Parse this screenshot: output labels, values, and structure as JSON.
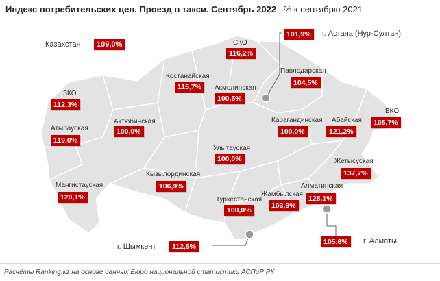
{
  "title": {
    "main": "Индекс потребительских цен. Проезд в такси. Сентябрь 2022",
    "separator": "|",
    "subtitle": "% к сентябрю 2021"
  },
  "national": {
    "label": "Казахстан",
    "value": "109,0%"
  },
  "regions": [
    {
      "name": "СКО",
      "value": "116,2%"
    },
    {
      "name": "Костанайская",
      "value": "115,7%"
    },
    {
      "name": "Акмолинская",
      "value": "100,5%"
    },
    {
      "name": "Павлодарская",
      "value": "104,5%"
    },
    {
      "name": "ЗКО",
      "value": "112,3%"
    },
    {
      "name": "Атырауская",
      "value": "119,0%"
    },
    {
      "name": "Актюбинская",
      "value": "100,0%"
    },
    {
      "name": "Карагандинская",
      "value": "100,0%"
    },
    {
      "name": "Абайская",
      "value": "121,2%"
    },
    {
      "name": "ВКО",
      "value": "105,7%"
    },
    {
      "name": "Улытауская",
      "value": "100,0%"
    },
    {
      "name": "Жетысуская",
      "value": "137,7%"
    },
    {
      "name": "Мангистауская",
      "value": "120,1%"
    },
    {
      "name": "Кызылординская",
      "value": "106,9%"
    },
    {
      "name": "Туркестанская",
      "value": "100,0%"
    },
    {
      "name": "Жамбылская",
      "value": "103,9%"
    },
    {
      "name": "Алматинская",
      "value": "128,1%"
    }
  ],
  "cities": [
    {
      "name": "г. Астана (Нур-Султан)",
      "value": "101,9%"
    },
    {
      "name": "г. Шымкент",
      "value": "112,5%"
    },
    {
      "name": "г. Алматы",
      "value": "105,6%"
    }
  ],
  "footer": "Расчёты Ranking.kz на основе данных Бюро национальной статистики АСПиР РК",
  "colors": {
    "map_fill": "#e3e3e3",
    "region_border": "#ffffff",
    "value_box": "#c00000",
    "marker": "#9a9a9a"
  }
}
